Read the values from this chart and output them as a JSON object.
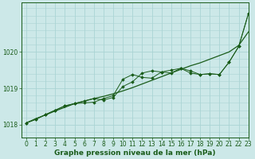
{
  "title": "Graphe pression niveau de la mer (hPa)",
  "background_color": "#cce8e8",
  "grid_color": "#aad4d4",
  "line_color": "#1a5c1a",
  "marker_color": "#1a5c1a",
  "xlim": [
    -0.5,
    23
  ],
  "ylim": [
    1017.65,
    1021.35
  ],
  "yticks": [
    1018,
    1019,
    1020
  ],
  "xticks": [
    0,
    1,
    2,
    3,
    4,
    5,
    6,
    7,
    8,
    9,
    10,
    11,
    12,
    13,
    14,
    15,
    16,
    17,
    18,
    19,
    20,
    21,
    22,
    23
  ],
  "series1_x": [
    0,
    1,
    2,
    3,
    4,
    5,
    6,
    7,
    8,
    9,
    10,
    11,
    12,
    13,
    14,
    15,
    16,
    17,
    18,
    19,
    20,
    21,
    22,
    23
  ],
  "series1_y": [
    1018.05,
    1018.17,
    1018.27,
    1018.38,
    1018.48,
    1018.58,
    1018.65,
    1018.72,
    1018.78,
    1018.85,
    1018.93,
    1019.02,
    1019.12,
    1019.22,
    1019.32,
    1019.42,
    1019.52,
    1019.62,
    1019.7,
    1019.8,
    1019.9,
    1020.0,
    1020.18,
    1020.55
  ],
  "series2_x": [
    0,
    1,
    2,
    3,
    4,
    5,
    6,
    7,
    8,
    9,
    10,
    11,
    12,
    13,
    14,
    15,
    16,
    17,
    18,
    19,
    20,
    21,
    22,
    23
  ],
  "series2_y": [
    1018.05,
    1018.15,
    1018.28,
    1018.4,
    1018.52,
    1018.58,
    1018.6,
    1018.62,
    1018.72,
    1018.8,
    1019.25,
    1019.38,
    1019.3,
    1019.28,
    1019.45,
    1019.5,
    1019.55,
    1019.42,
    1019.38,
    1019.4,
    1019.38,
    1019.72,
    1020.15,
    1021.05
  ],
  "series3_x": [
    0,
    1,
    2,
    3,
    4,
    5,
    6,
    7,
    8,
    9,
    10,
    11,
    12,
    13,
    14,
    15,
    16,
    17,
    18,
    19,
    20,
    21,
    22,
    23
  ],
  "series3_y": [
    1018.05,
    1018.15,
    1018.28,
    1018.4,
    1018.52,
    1018.58,
    1018.65,
    1018.72,
    1018.68,
    1018.75,
    1019.05,
    1019.18,
    1019.42,
    1019.48,
    1019.45,
    1019.42,
    1019.55,
    1019.48,
    1019.38,
    1019.4,
    1019.38,
    1019.72,
    1020.15,
    1021.05
  ],
  "xlabel_fontsize": 6.5,
  "tick_fontsize": 5.5,
  "figwidth": 3.2,
  "figheight": 2.0,
  "dpi": 100
}
